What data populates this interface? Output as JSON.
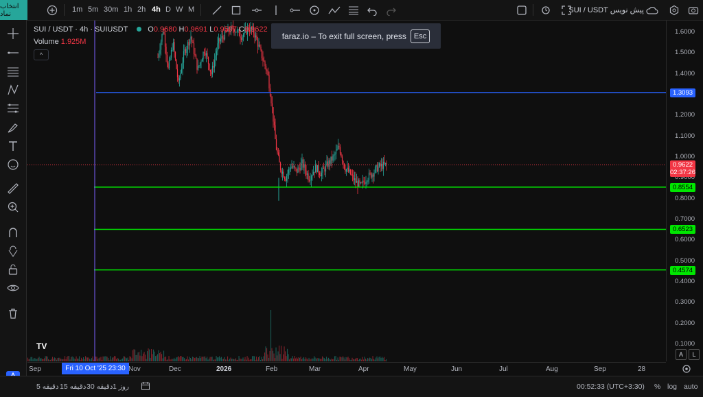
{
  "topbar": {
    "symbol_button": "انتخاب نماد",
    "timeframes": [
      "1m",
      "5m",
      "30m",
      "1h",
      "2h",
      "4h",
      "D",
      "W",
      "M"
    ],
    "active_timeframe": "4h",
    "title": "SUI / USDT پیش نویس"
  },
  "legend": {
    "symbol": "SUI / USDT · 4h · SUIUSDT",
    "o_label": "O",
    "o": "0.9680",
    "h_label": "H",
    "h": "0.9691",
    "l_label": "L",
    "l": "0.9597",
    "c_label": "C",
    "c": "0.9622",
    "volume_label": "Volume",
    "volume": "1.925M",
    "collapse": "^"
  },
  "fullscreen_message": {
    "text": "faraz.io – To exit full screen, press",
    "key": "Esc"
  },
  "price_axis": {
    "ticks": [
      "1.6000",
      "1.5000",
      "1.4000",
      "1.3000",
      "1.2000",
      "1.1000",
      "1.0000",
      "0.9000",
      "0.8000",
      "0.7000",
      "0.6000",
      "0.5000",
      "0.4000",
      "0.3000",
      "0.2000",
      "0.1000"
    ],
    "current_price": "0.9622",
    "countdown": "02:37:26",
    "lines": [
      {
        "value": "1.3093",
        "color": "#2962ff"
      },
      {
        "value": "0.8554",
        "color": "#00e600"
      },
      {
        "value": "0.6523",
        "color": "#00e600"
      },
      {
        "value": "0.4574",
        "color": "#00e600"
      }
    ]
  },
  "time_axis": {
    "labels": [
      "Sep",
      "Nov",
      "Dec",
      "2026",
      "Feb",
      "Mar",
      "Apr",
      "May",
      "Jun",
      "Jul",
      "Aug",
      "Sep",
      "28"
    ],
    "crosshair_date": "Fri 10 Oct '25  23:30"
  },
  "scale_buttons": {
    "a": "A",
    "l": "L"
  },
  "watermark": "TV",
  "bottombar": {
    "ranges": [
      "5 دقیقه",
      "15 دقیقه",
      "30 دقیقه",
      "1 روز"
    ],
    "clock": "00:52:33 (UTC+3:30)",
    "percent": "%",
    "log": "log",
    "auto": "auto"
  },
  "colors": {
    "up": "#26a69a",
    "down": "#f23645",
    "accent": "#2962ff"
  },
  "chart_data": {
    "type": "candlestick",
    "series": [
      {
        "name": "SUIUSDT",
        "values_by_month": {
          "Nov": [
            1.3,
            1.6
          ],
          "Dec": [
            1.3,
            1.55
          ],
          "2026": [
            1.35,
            1.6
          ],
          "Feb": [
            0.8,
            1.1
          ],
          "Mar": [
            0.84,
            1.08
          ],
          "Apr": [
            0.82,
            0.99
          ]
        }
      }
    ],
    "last_close": 0.9622,
    "ylim": [
      0.0,
      1.65
    ],
    "grid": false
  }
}
